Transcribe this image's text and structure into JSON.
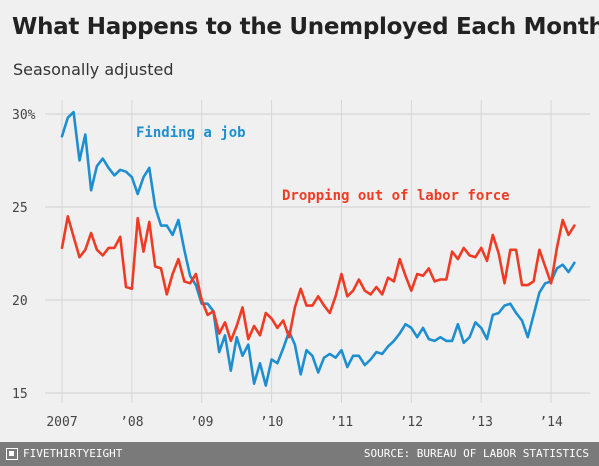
{
  "header": {
    "title": "What Happens to the Unemployed Each Month?",
    "subtitle": "Seasonally adjusted"
  },
  "footer": {
    "brand": "FIVETHIRTYEIGHT",
    "source": "SOURCE: BUREAU OF LABOR STATISTICS"
  },
  "colors": {
    "finding": "#1d8fd1",
    "dropping": "#ef3b24"
  },
  "chart_data": {
    "type": "line",
    "xlim": [
      2007,
      2014.5
    ],
    "ylim": [
      15,
      30
    ],
    "yticks": [
      15,
      20,
      25,
      30
    ],
    "ytick_labels": [
      "15",
      "20",
      "25",
      "30%"
    ],
    "xticks": [
      2007,
      2008,
      2009,
      2010,
      2011,
      2012,
      2013,
      2014
    ],
    "xtick_labels": [
      "2007",
      "’08",
      "’09",
      "’10",
      "’11",
      "’12",
      "’13",
      "’14"
    ],
    "grid": true,
    "series": [
      {
        "name": "Finding a job",
        "color": "#1d8fd1",
        "start": 2007,
        "step_months": 1,
        "values": [
          28.8,
          29.8,
          30.1,
          27.5,
          28.9,
          25.9,
          27.2,
          27.6,
          27.1,
          26.7,
          27.0,
          26.9,
          26.6,
          25.7,
          26.6,
          27.1,
          25.0,
          24.0,
          24.0,
          23.5,
          24.3,
          22.7,
          21.3,
          20.8,
          19.8,
          19.8,
          19.4,
          17.2,
          18.1,
          16.2,
          18.0,
          17.0,
          17.6,
          15.5,
          16.6,
          15.4,
          16.8,
          16.6,
          17.4,
          18.3,
          17.6,
          16.0,
          17.3,
          17.0,
          16.1,
          16.9,
          17.1,
          16.9,
          17.3,
          16.4,
          17.0,
          17.0,
          16.5,
          16.8,
          17.2,
          17.1,
          17.5,
          17.8,
          18.2,
          18.7,
          18.5,
          18.0,
          18.5,
          17.9,
          17.8,
          18.0,
          17.8,
          17.8,
          18.7,
          17.7,
          18.0,
          18.8,
          18.5,
          17.9,
          19.2,
          19.3,
          19.7,
          19.8,
          19.3,
          18.9,
          18.0,
          19.2,
          20.4,
          20.9,
          21.0,
          21.7,
          21.9,
          21.5,
          22.0
        ]
      },
      {
        "name": "Dropping out of labor force",
        "color": "#ef3b24",
        "start": 2007,
        "step_months": 1,
        "values": [
          22.8,
          24.5,
          23.4,
          22.3,
          22.7,
          23.6,
          22.7,
          22.4,
          22.8,
          22.8,
          23.4,
          20.7,
          20.6,
          24.4,
          22.6,
          24.2,
          21.8,
          21.7,
          20.3,
          21.4,
          22.2,
          21.0,
          20.9,
          21.4,
          20.0,
          19.2,
          19.4,
          18.2,
          18.8,
          17.8,
          18.6,
          19.6,
          17.9,
          18.6,
          18.1,
          19.3,
          19.0,
          18.5,
          18.9,
          18.0,
          19.6,
          20.6,
          19.7,
          19.7,
          20.2,
          19.7,
          19.3,
          20.2,
          21.4,
          20.2,
          20.5,
          21.1,
          20.5,
          20.3,
          20.7,
          20.3,
          21.2,
          21.0,
          22.2,
          21.3,
          20.5,
          21.4,
          21.3,
          21.7,
          21.0,
          21.1,
          21.1,
          22.6,
          22.2,
          22.8,
          22.4,
          22.3,
          22.8,
          22.1,
          23.5,
          22.5,
          20.9,
          22.7,
          22.7,
          20.8,
          20.8,
          21.0,
          22.7,
          21.8,
          20.9,
          22.8,
          24.3,
          23.5,
          24.0
        ]
      }
    ],
    "annotations": [
      {
        "text": "Finding a job",
        "series": 0
      },
      {
        "text": "Dropping out of labor force",
        "series": 1
      }
    ]
  }
}
